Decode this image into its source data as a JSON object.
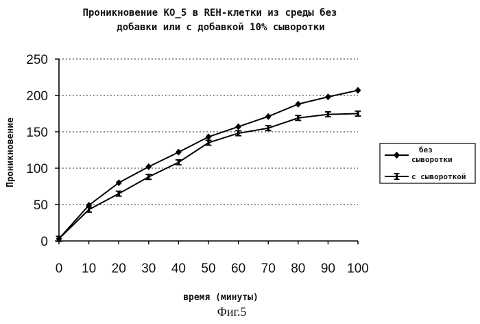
{
  "figure_caption": "Фиг.5",
  "chart_data": {
    "type": "line",
    "title_lines": [
      "Проникновение КО_5 в REH-клетки из среды без",
      "добавки или с добавкой 10% сыворотки"
    ],
    "xlabel": "время (минуты)",
    "ylabel": "Проникновение",
    "x": [
      0,
      10,
      20,
      30,
      40,
      50,
      60,
      70,
      80,
      90,
      100
    ],
    "x_ticks": [
      "0",
      "10",
      "20",
      "30",
      "40",
      "50",
      "60",
      "70",
      "80",
      "90",
      "100"
    ],
    "y_ticks": [
      "0",
      "50",
      "100",
      "150",
      "200",
      "250"
    ],
    "xlim": [
      0,
      100
    ],
    "ylim": [
      0,
      250
    ],
    "grid": "horizontal dotted",
    "legend_position": "right",
    "series": [
      {
        "name_lines": [
          "без",
          "сыворотки"
        ],
        "marker": "diamond",
        "values": [
          3,
          49,
          80,
          102,
          122,
          143,
          157,
          171,
          188,
          198,
          207
        ]
      },
      {
        "name_lines": [
          "с сывороткой"
        ],
        "marker": "square",
        "values": [
          3,
          43,
          65,
          88,
          108,
          135,
          148,
          155,
          169,
          174,
          175
        ]
      }
    ]
  }
}
